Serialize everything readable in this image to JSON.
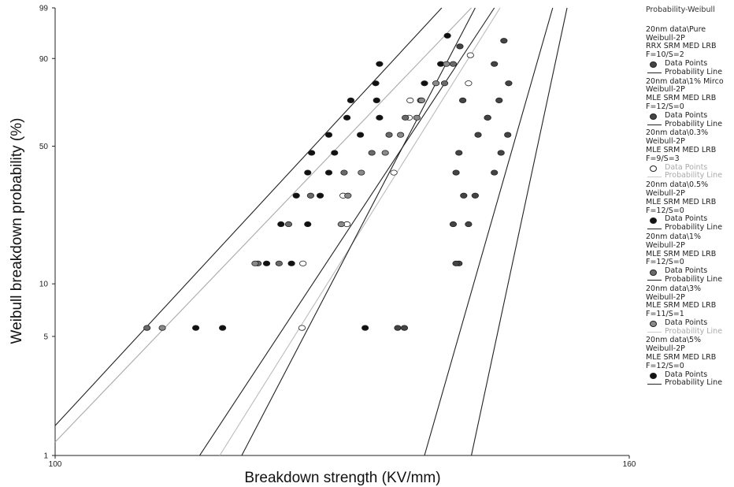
{
  "chart_data": {
    "type": "scatter",
    "title": "Probability-Weibull",
    "xlabel": "Breakdown strength (KV/mm)",
    "ylabel": "Weibull breakdown probability (%)",
    "xlim": [
      100,
      160
    ],
    "ylim": [
      1,
      99
    ],
    "y_scale": "weibull",
    "x_ticks": [
      "100",
      "160"
    ],
    "y_ticks": [
      "1",
      "5",
      "10",
      "50",
      "90",
      "99"
    ],
    "legend_placement": "right",
    "series": [
      {
        "name": "20nm data\\Pure",
        "lines": [
          "20nm data\\Pure",
          "Weibull-2P",
          "RRX SRM MED LRB",
          "F=10/S=2"
        ],
        "marker": "dgray",
        "points": [
          [
            135.8,
            5.6
          ],
          [
            142.2,
            13.0
          ],
          [
            141.6,
            21.2
          ],
          [
            142.7,
            29.7
          ],
          [
            141.9,
            38.3
          ],
          [
            142.2,
            46.9
          ],
          [
            144.2,
            55.5
          ],
          [
            145.2,
            64.1
          ],
          [
            142.6,
            72.7
          ],
          [
            142.3,
            93.4
          ]
        ],
        "line": [
          [
            138.6,
            1
          ],
          [
            152.0,
            99
          ]
        ]
      },
      {
        "name": "20nm data\\1% Mirco",
        "lines": [
          "20nm data\\1% Mirco",
          "Weibull-2P",
          "MLE SRM MED LRB",
          "F=12/S=0"
        ],
        "marker": "dgray",
        "points": [
          [
            136.5,
            5.6
          ],
          [
            141.9,
            13.0
          ],
          [
            143.2,
            21.2
          ],
          [
            143.9,
            29.7
          ],
          [
            145.9,
            38.3
          ],
          [
            146.6,
            46.9
          ],
          [
            147.3,
            55.5
          ],
          [
            145.2,
            64.1
          ],
          [
            146.4,
            72.7
          ],
          [
            147.4,
            80.6
          ],
          [
            145.9,
            88.2
          ],
          [
            146.9,
            94.7
          ]
        ],
        "line": [
          [
            143.5,
            1
          ],
          [
            153.5,
            99
          ]
        ]
      },
      {
        "name": "20nm data\\0.3%",
        "lines": [
          "20nm data\\0.3%",
          "Weibull-2P",
          "MLE SRM MED LRB",
          "F=9/S=3"
        ],
        "marker": "white",
        "points": [
          [
            125.8,
            5.6
          ],
          [
            125.9,
            13.0
          ],
          [
            130.5,
            21.2
          ],
          [
            130.1,
            29.7
          ],
          [
            135.4,
            38.3
          ],
          [
            137.0,
            64.1
          ],
          [
            137.1,
            72.7
          ],
          [
            143.2,
            80.6
          ],
          [
            143.4,
            91.0
          ]
        ],
        "line": [
          [
            117.2,
            1
          ],
          [
            146.5,
            99
          ]
        ]
      },
      {
        "name": "20nm data\\0.5%",
        "lines": [
          "20nm data\\0.5%",
          "Weibull-2P",
          "MLE SRM MED LRB",
          "F=12/S=0"
        ],
        "marker": "black",
        "points": [
          [
            114.7,
            5.6
          ],
          [
            132.4,
            5.6
          ],
          [
            124.7,
            13.0
          ],
          [
            126.4,
            21.2
          ],
          [
            127.7,
            29.7
          ],
          [
            128.6,
            38.3
          ],
          [
            129.2,
            46.9
          ],
          [
            131.9,
            55.5
          ],
          [
            133.9,
            64.1
          ],
          [
            133.6,
            72.7
          ],
          [
            138.6,
            80.6
          ],
          [
            140.3,
            88.2
          ]
        ],
        "line": [
          [
            119.5,
            1
          ],
          [
            143.9,
            99
          ]
        ]
      },
      {
        "name": "20nm data\\1%",
        "lines": [
          "20nm data\\1%",
          "Weibull-2P",
          "MLE SRM MED LRB",
          "F=12/S=0"
        ],
        "marker": "gray",
        "points": [
          [
            109.6,
            5.6
          ],
          [
            121.2,
            13.0
          ],
          [
            123.4,
            13.0
          ],
          [
            124.4,
            21.2
          ],
          [
            126.7,
            29.7
          ],
          [
            130.2,
            38.3
          ],
          [
            133.1,
            46.9
          ],
          [
            134.9,
            55.5
          ],
          [
            136.6,
            64.1
          ],
          [
            138.2,
            72.7
          ],
          [
            140.7,
            80.6
          ],
          [
            141.6,
            88.2
          ]
        ],
        "line": [
          [
            115.1,
            1
          ],
          [
            145.9,
            99
          ]
        ]
      },
      {
        "name": "20nm data\\3%",
        "lines": [
          "20nm data\\3%",
          "Weibull-2P",
          "MLE SRM MED LRB",
          "F=11/S=1"
        ],
        "marker": "lgray",
        "points": [
          [
            111.2,
            5.6
          ],
          [
            120.9,
            13.0
          ],
          [
            129.9,
            21.2
          ],
          [
            130.6,
            29.7
          ],
          [
            132.0,
            38.3
          ],
          [
            134.5,
            46.9
          ],
          [
            136.1,
            55.5
          ],
          [
            137.8,
            64.1
          ],
          [
            138.3,
            72.7
          ],
          [
            139.8,
            80.6
          ],
          [
            140.9,
            88.2
          ]
        ],
        "line": [
          [
            100.0,
            1.2
          ],
          [
            143.5,
            99
          ]
        ]
      },
      {
        "name": "20nm data\\5%",
        "lines": [
          "20nm data\\5%",
          "Weibull-2P",
          "MLE SRM MED LRB",
          "F=12/S=0"
        ],
        "marker": "black",
        "points": [
          [
            117.5,
            5.6
          ],
          [
            122.1,
            13.0
          ],
          [
            123.6,
            21.2
          ],
          [
            125.2,
            29.7
          ],
          [
            126.4,
            38.3
          ],
          [
            126.8,
            46.9
          ],
          [
            128.6,
            55.5
          ],
          [
            130.5,
            64.1
          ],
          [
            130.9,
            72.7
          ],
          [
            133.5,
            80.6
          ],
          [
            133.9,
            88.2
          ],
          [
            141.0,
            95.7
          ]
        ],
        "line": [
          [
            100.0,
            1.5
          ],
          [
            140.4,
            99
          ]
        ]
      }
    ],
    "legend_labels": {
      "points": "Data Points",
      "line": "Probability Line"
    }
  }
}
